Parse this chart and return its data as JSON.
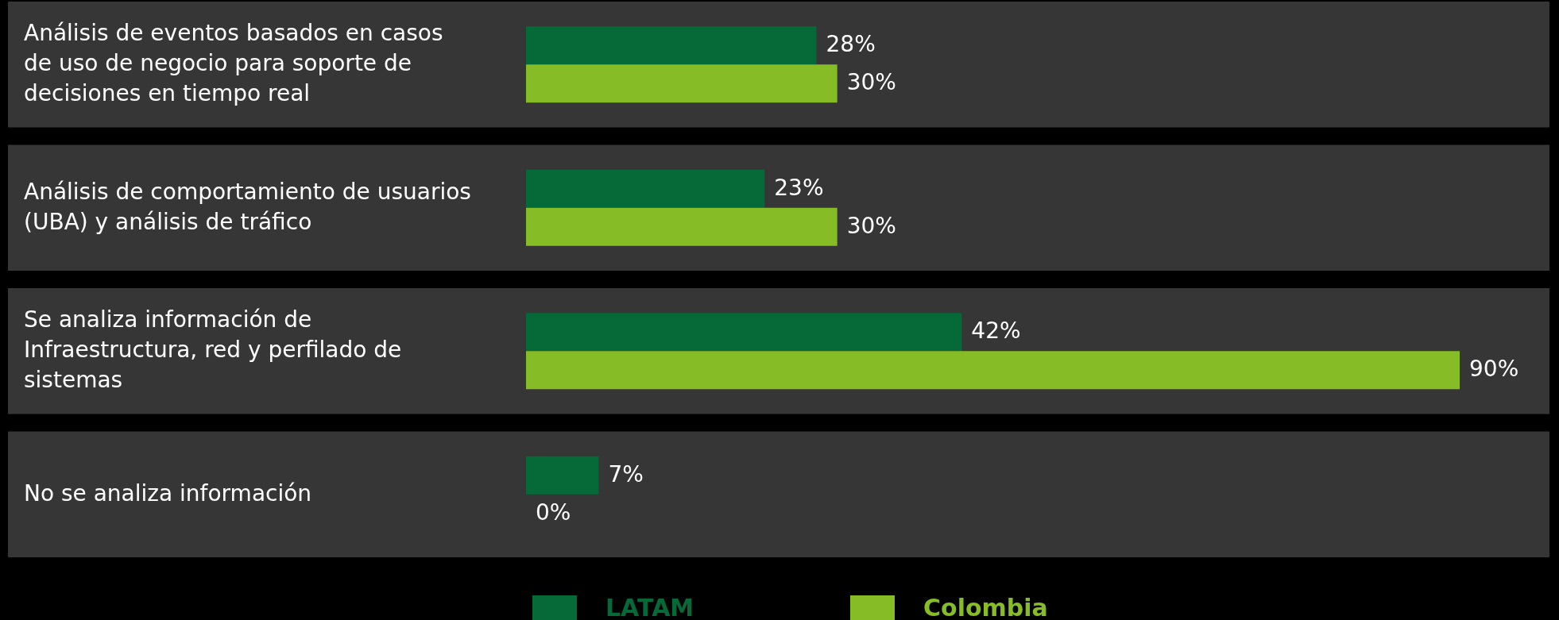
{
  "chart_data": {
    "type": "bar",
    "orientation": "horizontal",
    "categories": [
      "Análisis de eventos basados en casos de uso de negocio para soporte de decisiones en tiempo real",
      "Análisis de comportamiento de usuarios (UBA) y análisis de tráfico",
      "Se analiza información de Infraestructura, red y perfilado de sistemas",
      "No se analiza información"
    ],
    "series": [
      {
        "name": "LATAM",
        "color": "#056a37",
        "values": [
          28,
          23,
          42,
          7
        ],
        "value_labels": [
          "28%",
          "23%",
          "42%",
          "7%"
        ]
      },
      {
        "name": "Colombia",
        "color": "#86bc25",
        "values": [
          30,
          30,
          90,
          0
        ],
        "value_labels": [
          "30%",
          "30%",
          "90%",
          "0%"
        ]
      }
    ],
    "legend": "bottom"
  }
}
